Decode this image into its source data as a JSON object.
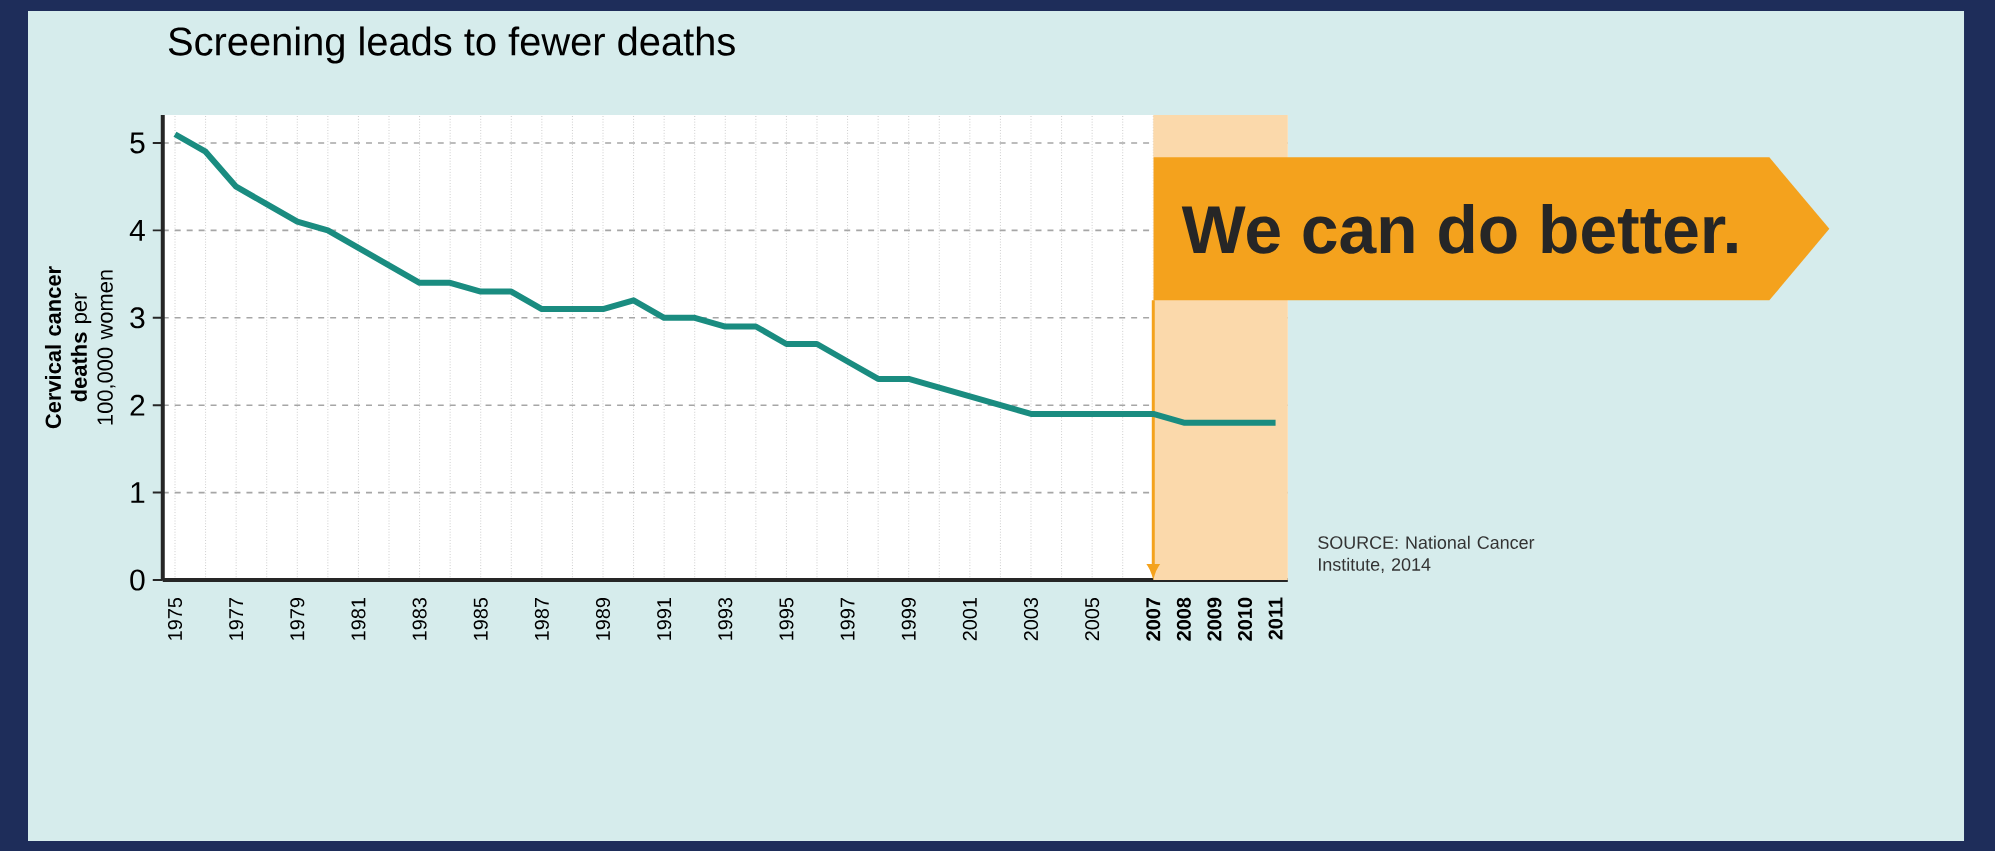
{
  "chart_data": {
    "type": "line",
    "title": "Screening leads to fewer deaths",
    "ylabel": "**Cervical cancer deaths** per 100,000 women",
    "categories": [
      "1975",
      null,
      "1977",
      null,
      "1979",
      null,
      "1981",
      null,
      "1983",
      null,
      "1985",
      null,
      "1987",
      null,
      "1989",
      null,
      "1991",
      null,
      "1993",
      null,
      "1995",
      null,
      "1997",
      null,
      "1999",
      null,
      "2001",
      null,
      "2003",
      null,
      "2005",
      null,
      "2007",
      "2008",
      "2009",
      "2010",
      "2011"
    ],
    "series": [
      {
        "color": "#1a8c80",
        "values": [
          5.1,
          4.9,
          4.5,
          4.3,
          4.1,
          4.0,
          3.8,
          3.6,
          3.4,
          3.4,
          3.3,
          3.3,
          3.1,
          3.1,
          3.1,
          3.2,
          3.0,
          3.0,
          2.9,
          2.9,
          2.7,
          2.7,
          2.5,
          2.3,
          2.3,
          2.2,
          2.1,
          2.0,
          1.9,
          1.9,
          1.9,
          1.9,
          1.9,
          1.8,
          1.8,
          1.8,
          1.8
        ]
      }
    ],
    "ylim": [
      0,
      5.32
    ],
    "yticks": [
      0,
      1,
      2,
      3,
      4,
      5
    ],
    "grid": true,
    "bands": [
      {
        "axis": "x",
        "from": "2007",
        "to": "2011",
        "label": "We can do better.",
        "color": "#fbd9ab"
      }
    ],
    "annotations": [
      "SOURCE: National Cancer Institute, 2014"
    ]
  }
}
